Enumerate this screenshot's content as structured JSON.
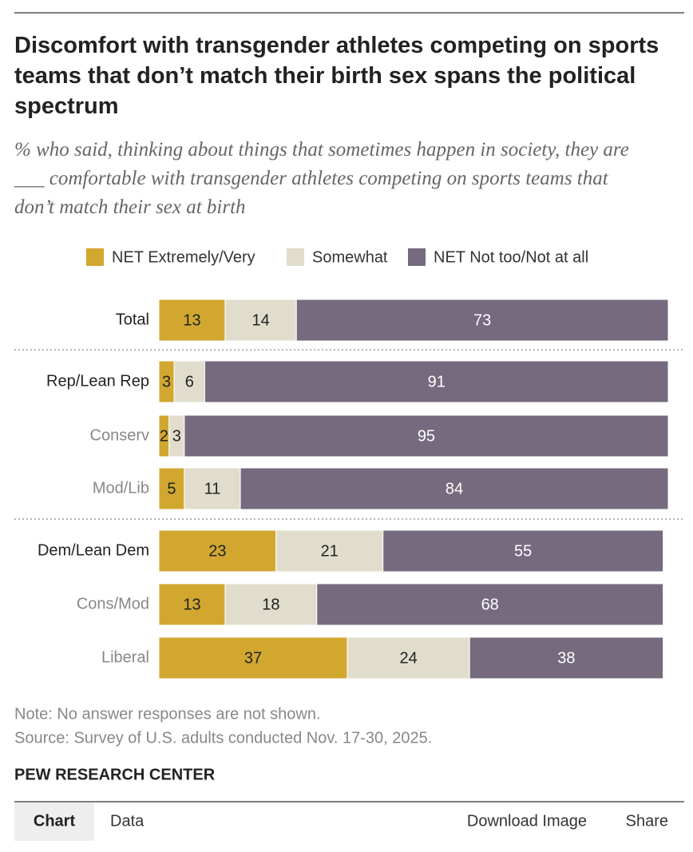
{
  "chart_data": {
    "type": "stacked-bar",
    "title": "Discomfort with transgender athletes competing on sports teams that don’t match their birth sex spans the political spectrum",
    "subtitle": "% who said, thinking about things that sometimes happen in society, they are ___ comfortable with transgender athletes competing on sports teams that don’t match their sex at birth",
    "categories": [
      "Total",
      "Rep/Lean Rep",
      "Conserv",
      "Mod/Lib",
      "Dem/Lean Dem",
      "Cons/Mod",
      "Liberal"
    ],
    "series": [
      {
        "name": "NET Extremely/Very",
        "color": "#d1a730",
        "values": [
          13,
          3,
          2,
          5,
          23,
          13,
          37
        ]
      },
      {
        "name": "Somewhat",
        "color": "#e1ddcc",
        "values": [
          14,
          6,
          3,
          11,
          21,
          18,
          24
        ]
      },
      {
        "name": "NET Not too/Not at all",
        "color": "#756a7e",
        "values": [
          73,
          91,
          95,
          84,
          55,
          68,
          38
        ]
      }
    ],
    "legend": "top"
  },
  "note": "Note: No answer responses are not shown.",
  "source": "Source: Survey of U.S. adults conducted Nov. 17-30, 2025.",
  "brand": "PEW RESEARCH CENTER",
  "tabs": [
    "Chart",
    "Data",
    "Download Image",
    "Share"
  ]
}
